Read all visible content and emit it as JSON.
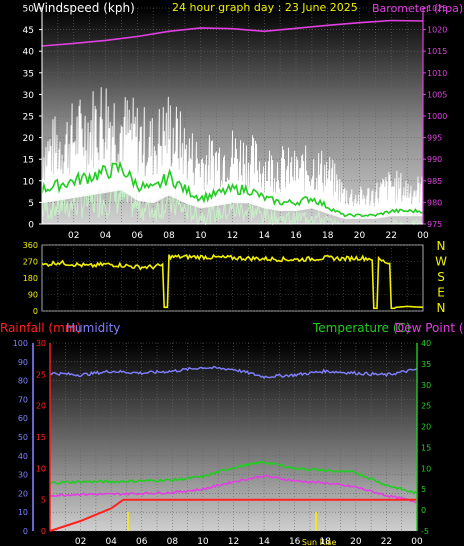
{
  "chart_data": [
    {
      "type": "line",
      "title": "24 hour graph day : 23 June 2025",
      "left_label": "Windspeed (kph)",
      "right_label": "Barometer (hpa)",
      "x_ticks": [
        "02",
        "04",
        "06",
        "08",
        "10",
        "12",
        "14",
        "16",
        "18",
        "20",
        "22",
        "00"
      ],
      "y_left_ticks": [
        0,
        5,
        10,
        15,
        20,
        25,
        30,
        35,
        40,
        45,
        50
      ],
      "y_left_range": [
        0,
        50
      ],
      "y_right_ticks": [
        975,
        980,
        985,
        990,
        995,
        1000,
        1005,
        1010,
        1015,
        1020,
        1025
      ],
      "y_right_range": [
        975,
        1025
      ],
      "colors": {
        "gust": "#ffffff",
        "avg": "#22cc22",
        "min": "#c8f0c8",
        "baro": "#e040e0"
      },
      "barometer": {
        "x": [
          0,
          2,
          4,
          6,
          8,
          10,
          12,
          14,
          16,
          18,
          20,
          22,
          24
        ],
        "values": [
          1016.2,
          1016.8,
          1017.5,
          1018.4,
          1019.6,
          1020.4,
          1020.2,
          1019.6,
          1020.3,
          1021.0,
          1021.6,
          1022.1,
          1022.0
        ]
      },
      "avg_wind": {
        "x": [
          0,
          1,
          2,
          3,
          4,
          5,
          6,
          7,
          8,
          9,
          10,
          11,
          12,
          13,
          14,
          15,
          16,
          17,
          18,
          19,
          20,
          21,
          22,
          23,
          24
        ],
        "values": [
          8,
          9,
          10,
          11,
          12,
          13,
          9,
          8,
          11,
          8,
          6,
          7,
          8,
          8,
          6,
          5,
          5,
          6,
          4,
          2,
          2,
          2,
          3,
          3,
          3
        ]
      },
      "gust_wind": {
        "x": [
          0,
          1,
          2,
          3,
          4,
          5,
          6,
          7,
          8,
          9,
          10,
          11,
          12,
          13,
          14,
          15,
          16,
          17,
          18,
          19,
          20,
          21,
          22,
          23,
          24
        ],
        "values": [
          16,
          18,
          20,
          22,
          25,
          22,
          20,
          18,
          22,
          17,
          14,
          15,
          16,
          15,
          13,
          13,
          12,
          13,
          12,
          7,
          6,
          7,
          9,
          8,
          8
        ]
      }
    },
    {
      "type": "line",
      "y_ticks": [
        0,
        90,
        180,
        270,
        360
      ],
      "y_range": [
        0,
        360
      ],
      "compass_labels": [
        "N",
        "W",
        "S",
        "E",
        "N"
      ],
      "colors": {
        "dir": "#f0f000"
      },
      "direction": {
        "x": [
          0,
          1,
          2,
          3,
          4,
          5,
          6,
          7,
          7.6,
          7.7,
          7.9,
          8.0,
          8.2,
          10,
          12,
          14,
          16,
          18,
          19,
          20,
          20.8,
          20.9,
          21.1,
          21.2,
          21.9,
          22.0,
          22.2,
          22.3,
          23,
          24
        ],
        "values": [
          250,
          265,
          255,
          245,
          255,
          250,
          240,
          240,
          250,
          20,
          20,
          300,
          295,
          295,
          290,
          285,
          280,
          290,
          285,
          290,
          285,
          15,
          15,
          280,
          260,
          15,
          15,
          20,
          25,
          20
        ]
      }
    },
    {
      "type": "line",
      "left_label_1": "Rainfall (mm)",
      "left_label_2": "Humidity",
      "right_label": "Temperature (C)",
      "right_label_2": "Dew Point (C)",
      "y_humidity_ticks": [
        0,
        10,
        20,
        30,
        40,
        50,
        60,
        70,
        80,
        90,
        100
      ],
      "y_rain_ticks": [
        0,
        5,
        10,
        15,
        20,
        25,
        30
      ],
      "y_temp_ticks": [
        -5,
        0,
        5,
        10,
        15,
        20,
        25,
        30,
        35,
        40
      ],
      "y_temp_range": [
        -5,
        40
      ],
      "sun_label": "Sun Rise",
      "colors": {
        "humidity": "#8080ff",
        "temp": "#22cc22",
        "dew": "#e040e0",
        "rain": "#ff2020",
        "sun": "#ffee00"
      },
      "humidity": {
        "x": [
          0,
          2,
          4,
          6,
          8,
          10,
          12,
          14,
          16,
          18,
          20,
          22,
          24
        ],
        "values": [
          84,
          83,
          85,
          84,
          85,
          87,
          86,
          82,
          83,
          85,
          84,
          83,
          86
        ]
      },
      "temperature": {
        "x": [
          0,
          2,
          4,
          6,
          8,
          10,
          12,
          14,
          16,
          18,
          20,
          22,
          24
        ],
        "values": [
          6.5,
          6.8,
          6.8,
          7,
          7.2,
          8,
          10.2,
          11.5,
          10,
          9.5,
          9,
          6,
          4
        ]
      },
      "dew_point": {
        "x": [
          0,
          2,
          4,
          6,
          8,
          10,
          12,
          14,
          16,
          18,
          20,
          22,
          24
        ],
        "values": [
          3.5,
          3.8,
          3.8,
          4,
          4.2,
          5,
          6.8,
          8.2,
          7,
          6.5,
          5.5,
          3.5,
          2
        ]
      },
      "rainfall": {
        "x": [
          0,
          1,
          2,
          3,
          4,
          4.8,
          5,
          24
        ],
        "values": [
          0,
          0.8,
          1.6,
          2.6,
          3.6,
          5.0,
          5.0,
          5.0
        ]
      },
      "sun_markers_x": [
        5.1,
        17.4
      ]
    }
  ]
}
